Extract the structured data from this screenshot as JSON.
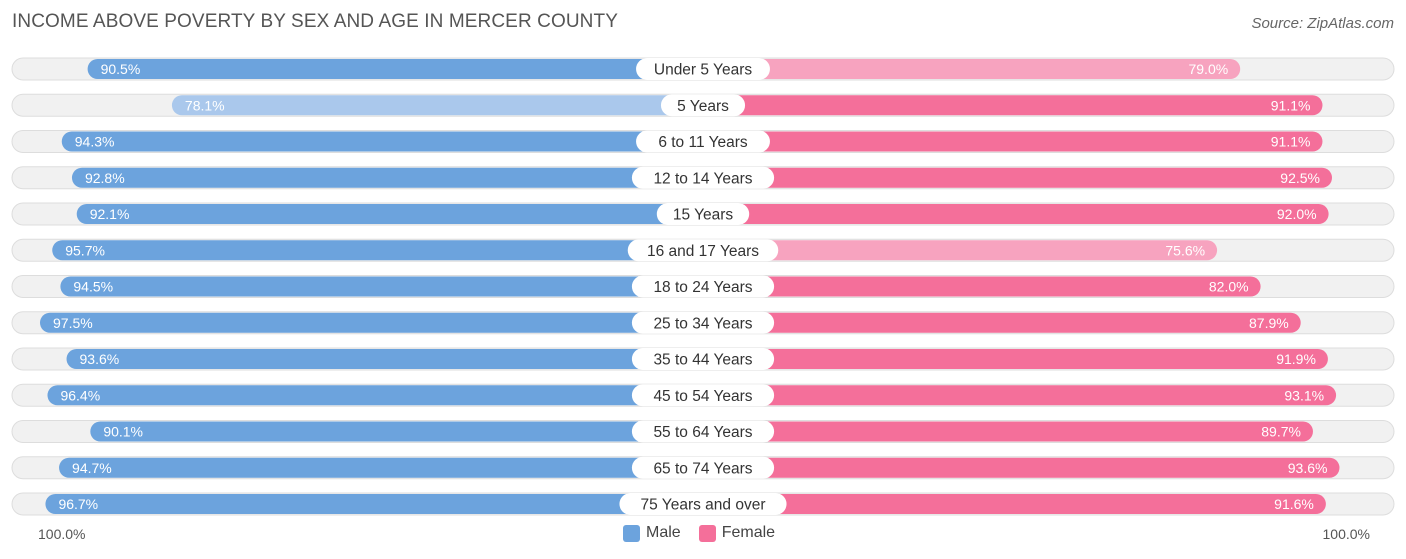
{
  "header": {
    "title": "INCOME ABOVE POVERTY BY SEX AND AGE IN MERCER COUNTY",
    "source": "Source: ZipAtlas.com"
  },
  "axis": {
    "left_label": "100.0%",
    "right_label": "100.0%"
  },
  "legend": {
    "male_label": "Male",
    "female_label": "Female"
  },
  "colors": {
    "male_strong": "#6ca3dd",
    "male_light": "#aac8ec",
    "female_strong": "#f46f9a",
    "female_light": "#f7a3bf",
    "track": "#f1f1f1",
    "track_border": "#dddddd"
  },
  "chart_data": {
    "type": "bar",
    "orientation": "horizontal-diverging",
    "title": "INCOME ABOVE POVERTY BY SEX AND AGE IN MERCER COUNTY",
    "xlim": [
      0,
      100
    ],
    "categories": [
      "Under 5 Years",
      "5 Years",
      "6 to 11 Years",
      "12 to 14 Years",
      "15 Years",
      "16 and 17 Years",
      "18 to 24 Years",
      "25 to 34 Years",
      "35 to 44 Years",
      "45 to 54 Years",
      "55 to 64 Years",
      "65 to 74 Years",
      "75 Years and over"
    ],
    "series": [
      {
        "name": "Male",
        "values": [
          90.5,
          78.1,
          94.3,
          92.8,
          92.1,
          95.7,
          94.5,
          97.5,
          93.6,
          96.4,
          90.1,
          94.7,
          96.7
        ],
        "labels": [
          "90.5%",
          "78.1%",
          "94.3%",
          "92.8%",
          "92.1%",
          "95.7%",
          "94.5%",
          "97.5%",
          "93.6%",
          "96.4%",
          "90.1%",
          "94.7%",
          "96.7%"
        ]
      },
      {
        "name": "Female",
        "values": [
          79.0,
          91.1,
          91.1,
          92.5,
          92.0,
          75.6,
          82.0,
          87.9,
          91.9,
          93.1,
          89.7,
          93.6,
          91.6
        ],
        "labels": [
          "79.0%",
          "91.1%",
          "91.1%",
          "92.5%",
          "92.0%",
          "75.6%",
          "82.0%",
          "87.9%",
          "91.9%",
          "93.1%",
          "89.7%",
          "93.6%",
          "91.6%"
        ]
      }
    ]
  }
}
